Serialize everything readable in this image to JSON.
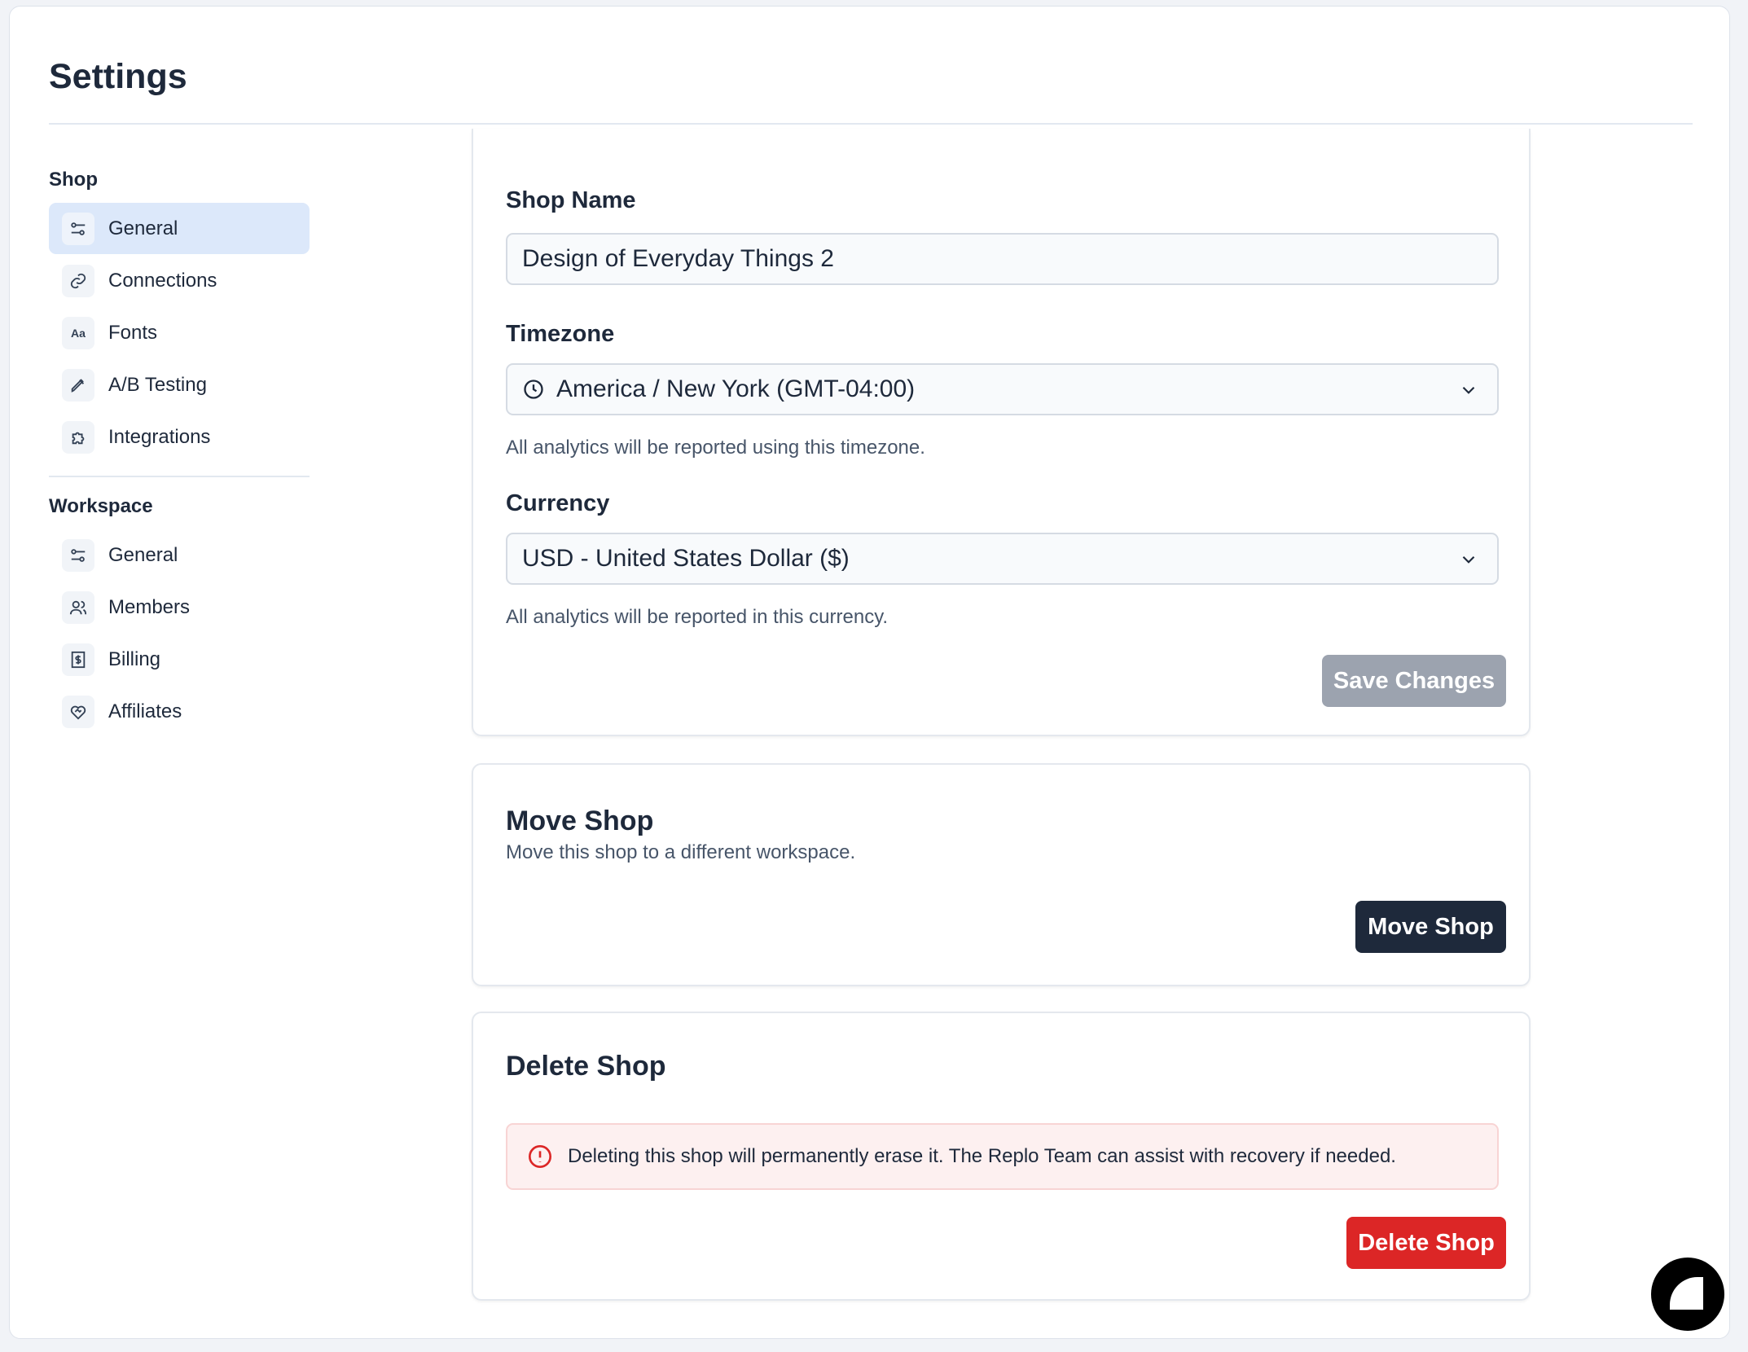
{
  "header": {
    "title": "Settings"
  },
  "sidebar": {
    "shop_heading": "Shop",
    "shop_items": [
      {
        "label": "General",
        "icon": "sliders-icon",
        "active": true
      },
      {
        "label": "Connections",
        "icon": "link-icon"
      },
      {
        "label": "Fonts",
        "icon": "font-icon"
      },
      {
        "label": "A/B Testing",
        "icon": "pipette-icon"
      },
      {
        "label": "Integrations",
        "icon": "puzzle-icon"
      }
    ],
    "workspace_heading": "Workspace",
    "workspace_items": [
      {
        "label": "General",
        "icon": "sliders-icon"
      },
      {
        "label": "Members",
        "icon": "users-icon"
      },
      {
        "label": "Billing",
        "icon": "receipt-icon"
      },
      {
        "label": "Affiliates",
        "icon": "handshake-heart-icon"
      }
    ]
  },
  "general": {
    "shop_name_label": "Shop Name",
    "shop_name_value": "Design of Everyday Things 2",
    "timezone_label": "Timezone",
    "timezone_value": "America / New York (GMT-04:00)",
    "timezone_help": "All analytics will be reported using this timezone.",
    "currency_label": "Currency",
    "currency_value": "USD - United States Dollar ($)",
    "currency_help": "All analytics will be reported in this currency.",
    "save_label": "Save Changes"
  },
  "move": {
    "title": "Move Shop",
    "description": "Move this shop to a different workspace.",
    "button": "Move Shop"
  },
  "delete": {
    "title": "Delete Shop",
    "warning": "Deleting this shop will permanently erase it. The Replo Team can assist with recovery if needed.",
    "button": "Delete Shop"
  },
  "colors": {
    "accent_active": "#dce8fa",
    "primary_dark": "#1e293b",
    "danger": "#dc2626",
    "disabled": "#9ca3af"
  }
}
